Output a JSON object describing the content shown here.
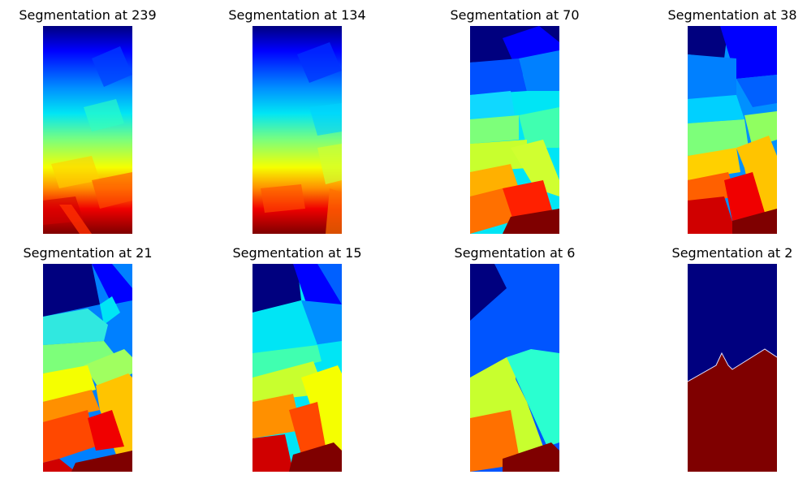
{
  "figure": {
    "panels": [
      {
        "title": "Segmentation at 239",
        "segments": 239
      },
      {
        "title": "Segmentation at 134",
        "segments": 134
      },
      {
        "title": "Segmentation at 70",
        "segments": 70
      },
      {
        "title": "Segmentation at 38",
        "segments": 38
      },
      {
        "title": "Segmentation at 21",
        "segments": 21
      },
      {
        "title": "Segmentation at 15",
        "segments": 15
      },
      {
        "title": "Segmentation at 6",
        "segments": 6
      },
      {
        "title": "Segmentation at 2",
        "segments": 2
      }
    ],
    "colormap": "jet",
    "colors": {
      "dark_blue": "#00007f",
      "blue": "#0000ff",
      "azure": "#0055ff",
      "cyan": "#00e5f5",
      "aquamarine": "#2affd0",
      "green": "#7dff7a",
      "yellow_green": "#c8ff2e",
      "yellow": "#f5ff00",
      "amber": "#ffc400",
      "orange": "#ff7000",
      "red_orange": "#ff4800",
      "red": "#f00000",
      "dark_red": "#7f0000"
    }
  }
}
